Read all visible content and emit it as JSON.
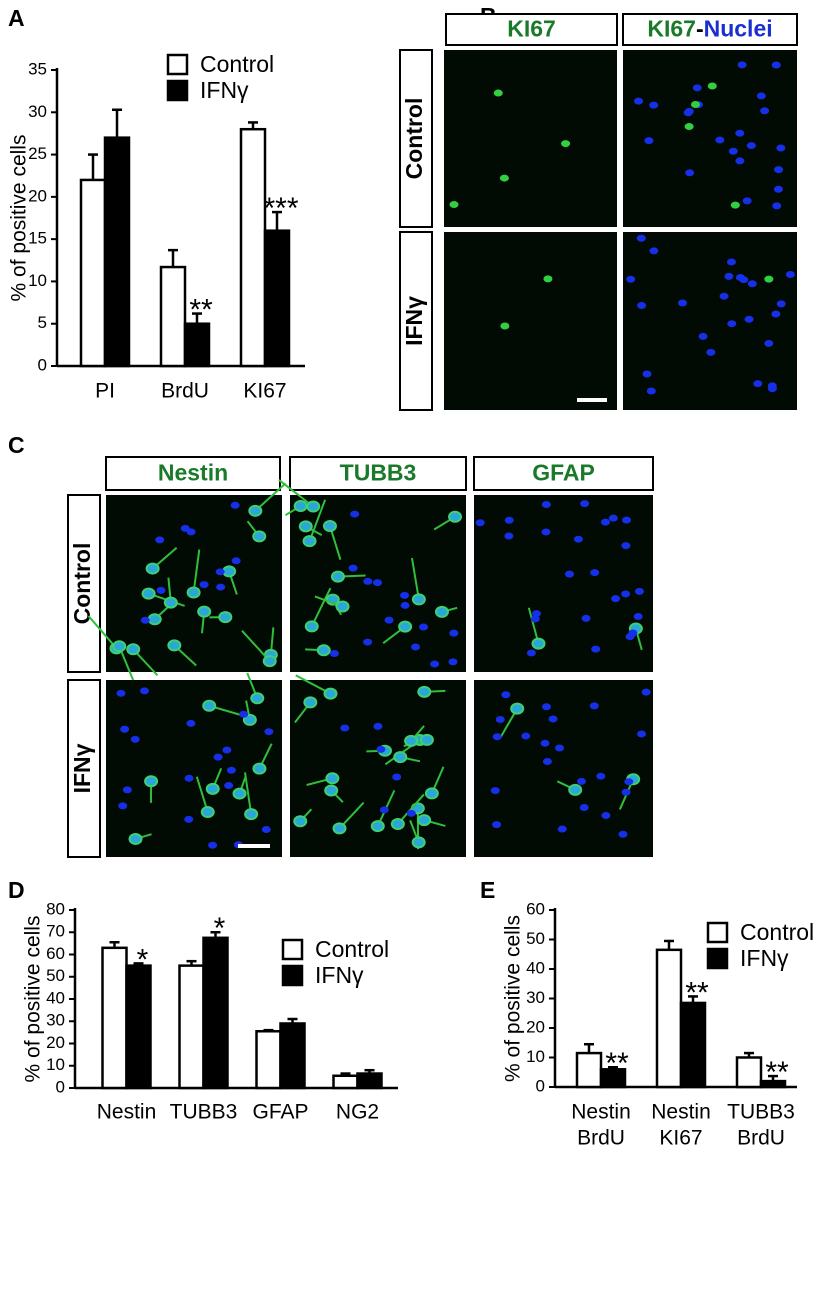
{
  "panel_letters": [
    "A",
    "B",
    "C",
    "D",
    "E"
  ],
  "panel_b": {
    "headers": [
      [
        {
          "text": "KI67",
          "color": "#1a7a2a"
        }
      ],
      [
        {
          "text": "KI67",
          "color": "#1a7a2a"
        },
        {
          "text": "-",
          "color": "#000000"
        },
        {
          "text": "Nuclei",
          "color": "#1a2fd0"
        }
      ]
    ],
    "rows": [
      "Control",
      "IFNγ"
    ]
  },
  "panel_c": {
    "headers": [
      [
        {
          "text": "Nestin",
          "color": "#1a7a2a"
        }
      ],
      [
        {
          "text": "TUBB3",
          "color": "#1a7a2a"
        }
      ],
      [
        {
          "text": "GFAP",
          "color": "#1a7a2a"
        }
      ]
    ],
    "rows": [
      "Control",
      "IFNγ"
    ]
  },
  "chart_data": [
    {
      "type": "bar",
      "y_label": "% of positive cells",
      "categories": [
        "PI",
        "BrdU",
        "KI67"
      ],
      "series": [
        {
          "name": "Control",
          "color": "#ffffff",
          "values": [
            22,
            11.7,
            28
          ],
          "errors": [
            3,
            2,
            0.8
          ]
        },
        {
          "name": "IFNγ",
          "color": "#000000",
          "values": [
            27,
            5,
            16
          ],
          "errors": [
            3.3,
            1.2,
            2.2
          ],
          "annotations": [
            null,
            "**",
            "***"
          ]
        }
      ],
      "ylim": [
        0,
        35
      ],
      "yticks": [
        0,
        5,
        10,
        15,
        20,
        25,
        30,
        35
      ]
    },
    {
      "type": "bar",
      "y_label": "% of positive cells",
      "categories": [
        "Nestin",
        "TUBB3",
        "GFAP",
        "NG2"
      ],
      "series": [
        {
          "name": "Control",
          "color": "#ffffff",
          "values": [
            63,
            55,
            25.5,
            5.5
          ],
          "errors": [
            2.5,
            2,
            0.5,
            1
          ]
        },
        {
          "name": "IFNγ",
          "color": "#000000",
          "values": [
            55,
            67.5,
            29,
            6.5
          ],
          "errors": [
            1,
            2.5,
            2,
            1.5
          ],
          "annotations": [
            "*",
            "*",
            null,
            null
          ]
        }
      ],
      "ylim": [
        0,
        80
      ],
      "yticks": [
        0,
        10,
        20,
        30,
        40,
        50,
        60,
        70,
        80
      ]
    },
    {
      "type": "bar",
      "y_label": "% of positive cells",
      "categories": [
        [
          "Nestin",
          "BrdU"
        ],
        [
          "Nestin",
          "KI67"
        ],
        [
          "TUBB3",
          "BrdU"
        ]
      ],
      "series": [
        {
          "name": "Control",
          "color": "#ffffff",
          "values": [
            11.5,
            46.5,
            10
          ],
          "errors": [
            3,
            3,
            1.5
          ]
        },
        {
          "name": "IFNγ",
          "color": "#000000",
          "values": [
            6,
            28.5,
            2
          ],
          "errors": [
            0.7,
            2.2,
            1.7
          ],
          "annotations": [
            "**",
            "**",
            "**"
          ]
        }
      ],
      "ylim": [
        0,
        60
      ],
      "yticks": [
        0,
        10,
        20,
        30,
        40,
        50,
        60
      ]
    }
  ]
}
